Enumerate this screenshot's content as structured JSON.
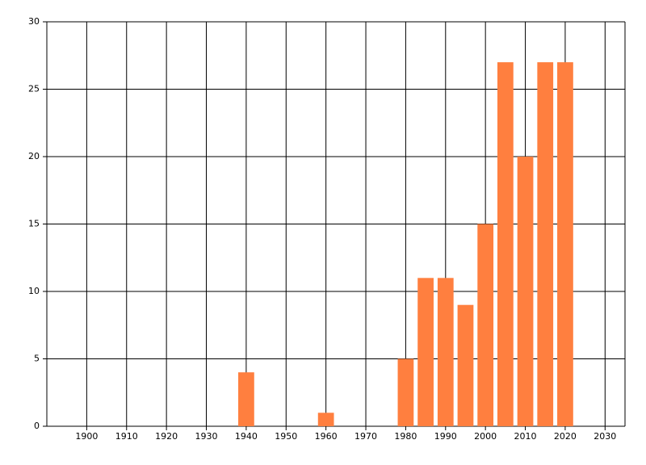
{
  "chart_data": {
    "type": "bar",
    "x": [
      1940,
      1960,
      1980,
      1985,
      1990,
      1995,
      2000,
      2005,
      2010,
      2015,
      2020
    ],
    "values": [
      4,
      1,
      5,
      11,
      11,
      9,
      15,
      27,
      20,
      27,
      27
    ],
    "color": "#ff7f3f",
    "xlim": [
      1890,
      2035
    ],
    "xticks": [
      1900,
      1910,
      1920,
      1930,
      1940,
      1950,
      1960,
      1970,
      1980,
      1990,
      2000,
      2010,
      2020,
      2030
    ],
    "ylim": [
      0,
      30
    ],
    "yticks": [
      0,
      5,
      10,
      15,
      20,
      25,
      30
    ],
    "grid": true
  }
}
